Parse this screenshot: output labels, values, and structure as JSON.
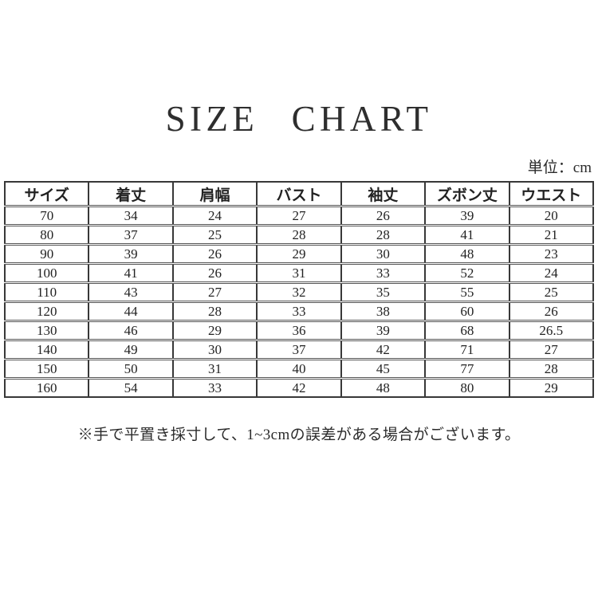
{
  "page": {
    "title": "SIZE CHART",
    "unit_label": "単位：cm",
    "footnote": "※手で平置き採寸して、1~3cmの誤差がある場合がございます。"
  },
  "colors": {
    "background": "#ffffff",
    "text": "#2b2b2b",
    "border": "#383838"
  },
  "table": {
    "headers": [
      "サイズ",
      "着丈",
      "肩幅",
      "バスト",
      "袖丈",
      "ズボン丈",
      "ウエスト"
    ],
    "rows": [
      [
        "70",
        "34",
        "24",
        "27",
        "26",
        "39",
        "20"
      ],
      [
        "80",
        "37",
        "25",
        "28",
        "28",
        "41",
        "21"
      ],
      [
        "90",
        "39",
        "26",
        "29",
        "30",
        "48",
        "23"
      ],
      [
        "100",
        "41",
        "26",
        "31",
        "33",
        "52",
        "24"
      ],
      [
        "110",
        "43",
        "27",
        "32",
        "35",
        "55",
        "25"
      ],
      [
        "120",
        "44",
        "28",
        "33",
        "38",
        "60",
        "26"
      ],
      [
        "130",
        "46",
        "29",
        "36",
        "39",
        "68",
        "26.5"
      ],
      [
        "140",
        "49",
        "30",
        "37",
        "42",
        "71",
        "27"
      ],
      [
        "150",
        "50",
        "31",
        "40",
        "45",
        "77",
        "28"
      ],
      [
        "160",
        "54",
        "33",
        "42",
        "48",
        "80",
        "29"
      ]
    ]
  }
}
